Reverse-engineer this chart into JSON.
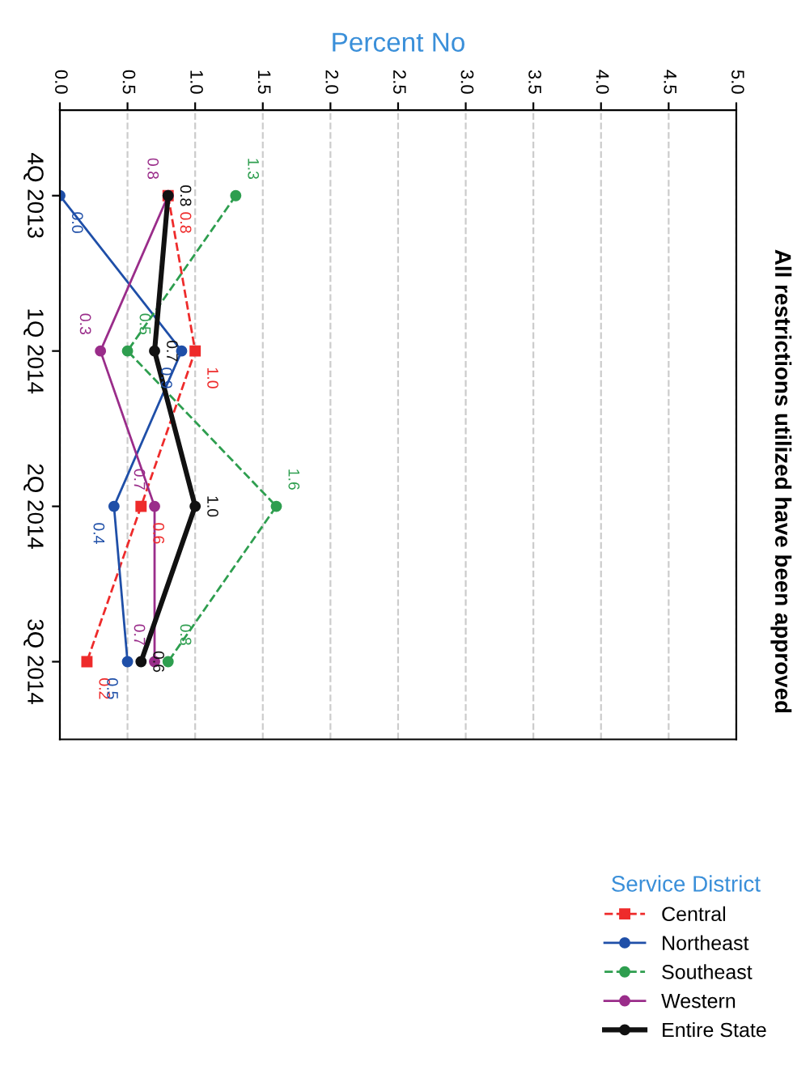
{
  "chart_data": {
    "type": "line",
    "orientation": "horizontal",
    "title": "All restrictions utilized have been approved",
    "xlabel": "Percent No",
    "legend_title": "Service District",
    "categories": [
      "4Q 2013",
      "1Q 2014",
      "2Q 2014",
      "3Q 2014"
    ],
    "series": [
      {
        "name": "Central",
        "color": "#ee2b2b",
        "marker": "square",
        "line_style": "dashed",
        "values": [
          0.8,
          1.0,
          0.6,
          0.2
        ],
        "value_labels": [
          "0.8",
          "1.0",
          "0.6",
          "0.2"
        ]
      },
      {
        "name": "Northeast",
        "color": "#1f4fa8",
        "marker": "circle",
        "values": [
          0.0,
          0.9,
          0.4,
          0.5
        ],
        "value_labels": [
          "0.0",
          "0.9",
          "0.4",
          "0.5"
        ]
      },
      {
        "name": "Southeast",
        "color": "#2e9e4f",
        "marker": "circle",
        "line_style": "dashed",
        "values": [
          1.3,
          0.5,
          1.6,
          0.8
        ],
        "value_labels": [
          "1.3",
          "0.5",
          "1.6",
          "0.8"
        ]
      },
      {
        "name": "Western",
        "color": "#9a2d8a",
        "marker": "circle",
        "values": [
          0.8,
          0.3,
          0.7,
          0.7
        ],
        "value_labels": [
          "0.8",
          "0.3",
          "0.7",
          "0.7"
        ]
      },
      {
        "name": "Entire State",
        "color": "#111111",
        "marker": "circle",
        "values": [
          0.8,
          0.7,
          1.0,
          0.6
        ],
        "value_labels": [
          "0.8",
          "0.7",
          "1.0",
          "0.6"
        ]
      }
    ],
    "xlim": [
      0,
      5
    ],
    "xticks": [
      {
        "value": 0,
        "label": "0.0"
      },
      {
        "value": 0.5,
        "label": "0.5"
      },
      {
        "value": 1,
        "label": "1.0"
      },
      {
        "value": 1.5,
        "label": "1.5"
      },
      {
        "value": 2,
        "label": "2.0"
      },
      {
        "value": 2.5,
        "label": "2.5"
      },
      {
        "value": 3,
        "label": "3.0"
      },
      {
        "value": 3.5,
        "label": "3.5"
      },
      {
        "value": 4,
        "label": "4.0"
      },
      {
        "value": 4.5,
        "label": "4.5"
      },
      {
        "value": 5,
        "label": "5.0"
      }
    ],
    "grid": "x",
    "legend": "bottom right"
  }
}
